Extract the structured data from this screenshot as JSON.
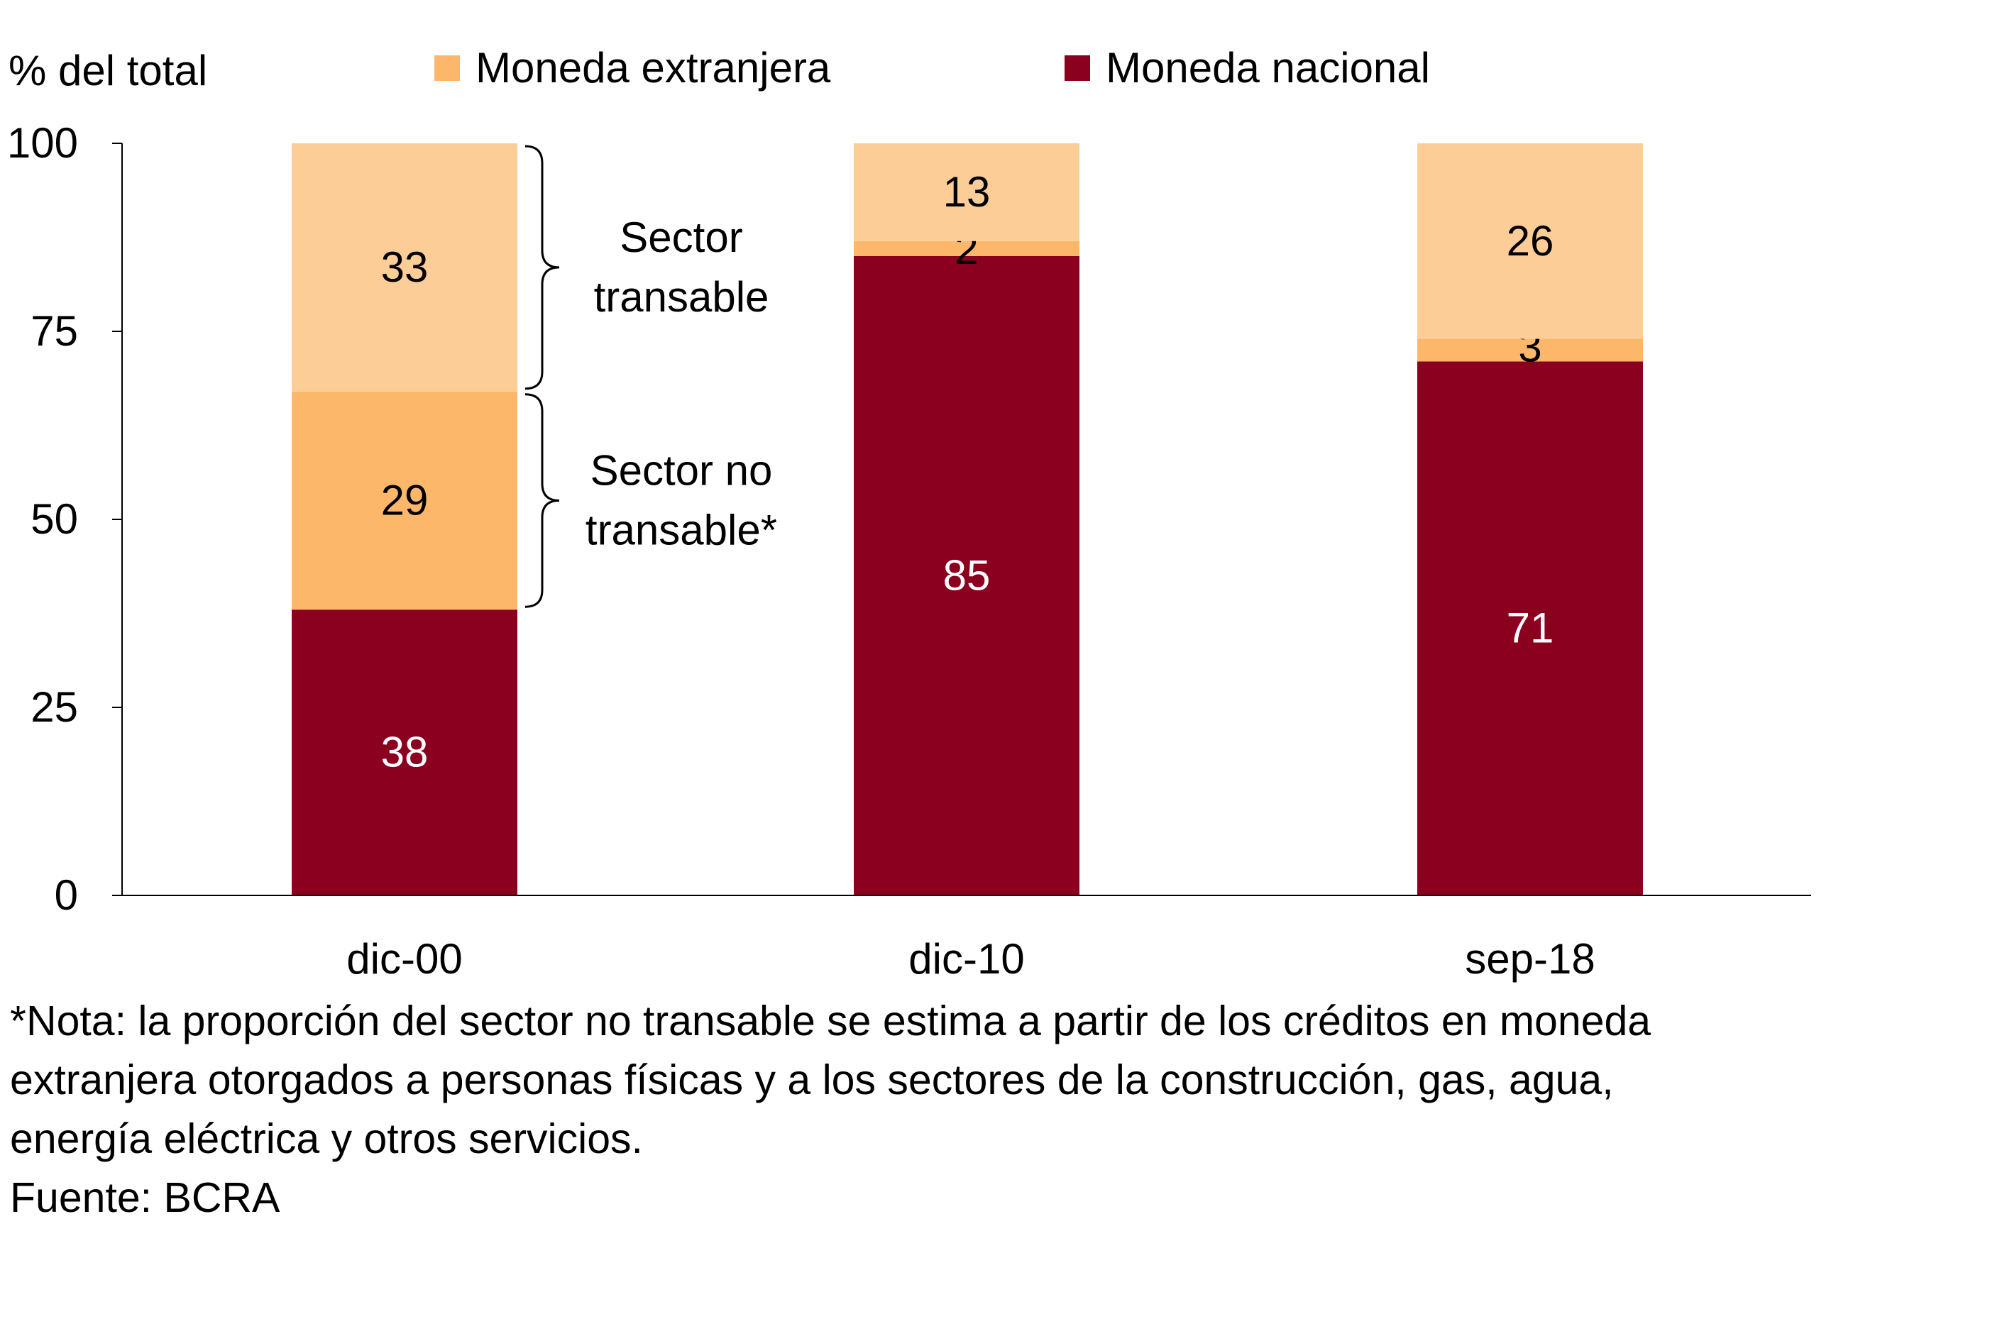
{
  "chart_data": {
    "type": "bar",
    "stacked": true,
    "ylabel": "% del total",
    "ylim": [
      0,
      100
    ],
    "yticks": [
      0,
      25,
      50,
      75,
      100
    ],
    "categories": [
      "dic-00",
      "dic-10",
      "sep-18"
    ],
    "legend": {
      "placement": "top",
      "items": [
        {
          "label": "Moneda extranjera",
          "color": "#FDB76B"
        },
        {
          "label": "Moneda nacional",
          "color": "#8B001E"
        }
      ]
    },
    "series": [
      {
        "name": "Moneda nacional",
        "color": "#8B001E",
        "label_color": "#ffffff",
        "values": [
          38,
          85,
          71
        ]
      },
      {
        "name": "Moneda extranjera - Sector no transable",
        "color": "#FDB76B",
        "label_color": "#000000",
        "values": [
          29,
          2,
          3
        ]
      },
      {
        "name": "Moneda extranjera - Sector transable",
        "color": "#FDCD98",
        "label_color": "#000000",
        "values": [
          33,
          13,
          26
        ]
      }
    ],
    "annotations": [
      {
        "lines": [
          "Sector",
          "transable"
        ],
        "bracket_range": [
          67,
          100
        ],
        "category": "dic-00"
      },
      {
        "lines": [
          "Sector no",
          "transable*"
        ],
        "bracket_range": [
          38,
          67
        ],
        "category": "dic-00"
      }
    ]
  },
  "notes": {
    "lines": [
      "*Nota: la proporción del sector no transable se estima a partir de los créditos en moneda",
      "extranjera otorgados a personas físicas y a los sectores de la construcción, gas, agua,",
      "energía eléctrica y otros servicios."
    ],
    "source": "Fuente: BCRA"
  }
}
